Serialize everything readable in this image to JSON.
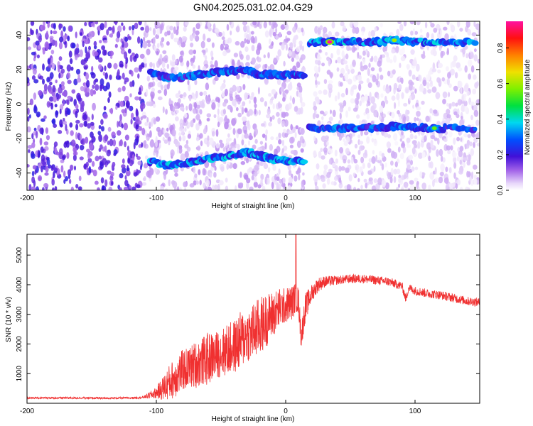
{
  "figure": {
    "title": "GN04.2025.031.02.04.G29"
  },
  "chart_data": [
    {
      "type": "heatmap",
      "title": "GN04.2025.031.02.04.G29",
      "xlabel": "Height of straight line (km)",
      "ylabel": "Frequency (Hz)",
      "xlim": [
        -200,
        150
      ],
      "ylim": [
        -50,
        48
      ],
      "xticks": [
        -200,
        -100,
        0,
        100
      ],
      "yticks": [
        40,
        20,
        0,
        -20,
        -40
      ],
      "grid": false,
      "colorbar": {
        "label": "Normalized spectral amplitude",
        "range": [
          0.0,
          0.95
        ],
        "ticks": [
          0.0,
          0.2,
          0.4,
          0.6,
          0.8
        ],
        "colors": [
          "#ffffff",
          "#c8a0f0",
          "#8030e0",
          "#2020e8",
          "#00a0ff",
          "#00e8d8",
          "#00e040",
          "#c8f000",
          "#ff9000",
          "#ff2030",
          "#ff1090"
        ]
      },
      "tracks": [
        {
          "x": [
            -105,
            -90,
            -75,
            -60,
            -45,
            -30,
            -20,
            -10,
            0,
            15
          ],
          "y": [
            18,
            15,
            16,
            18,
            19,
            20,
            17,
            17,
            17,
            17
          ],
          "amplitude": 0.3
        },
        {
          "x": [
            -105,
            -90,
            -75,
            -60,
            -45,
            -30,
            -20,
            -10,
            0,
            15
          ],
          "y": [
            -33,
            -36,
            -34,
            -32,
            -30,
            -28,
            -30,
            -32,
            -33,
            -33
          ],
          "amplitude": 0.35
        },
        {
          "x": [
            18,
            35,
            50,
            70,
            85,
            100,
            120,
            148
          ],
          "y": [
            36,
            36,
            36,
            36,
            37,
            36,
            36,
            36
          ],
          "amplitude": 0.35
        },
        {
          "x": [
            18,
            35,
            50,
            70,
            85,
            100,
            120,
            148
          ],
          "y": [
            -14,
            -14,
            -14,
            -14,
            -13,
            -14,
            -14,
            -14
          ],
          "amplitude": 0.3
        }
      ],
      "hotspots": [
        {
          "x": 34,
          "y": 36,
          "amplitude": 0.95
        },
        {
          "x": 84,
          "y": 37,
          "amplitude": 0.6
        },
        {
          "x": 115,
          "y": -14,
          "amplitude": 0.55
        }
      ]
    },
    {
      "type": "line",
      "xlabel": "Height of straight line (km)",
      "ylabel": "SNR (10 * v/v)",
      "xlim": [
        -200,
        150
      ],
      "ylim": [
        0,
        5700
      ],
      "xticks": [
        -200,
        -100,
        0,
        100
      ],
      "yticks": [
        1000,
        2000,
        3000,
        4000,
        5000
      ],
      "grid": false,
      "series": [
        {
          "color": "#f03030",
          "x": [
            -200,
            -180,
            -160,
            -140,
            -120,
            -110,
            -100,
            -95,
            -90,
            -85,
            -80,
            -75,
            -70,
            -65,
            -60,
            -55,
            -50,
            -45,
            -40,
            -35,
            -30,
            -25,
            -20,
            -15,
            -10,
            -5,
            0,
            5,
            8,
            10,
            12,
            15,
            20,
            25,
            30,
            40,
            50,
            60,
            70,
            80,
            90,
            93,
            95,
            100,
            110,
            120,
            130,
            140,
            150
          ],
          "y": [
            180,
            180,
            180,
            170,
            180,
            200,
            350,
            500,
            700,
            900,
            1100,
            1200,
            1300,
            1400,
            1500,
            1600,
            1700,
            1800,
            1900,
            2100,
            2300,
            2400,
            2600,
            2800,
            3000,
            3200,
            3300,
            3400,
            3600,
            3400,
            2200,
            3200,
            3700,
            4000,
            4100,
            4150,
            4200,
            4200,
            4150,
            4100,
            3950,
            3500,
            3900,
            3800,
            3700,
            3650,
            3550,
            3450,
            3400
          ],
          "spread": [
            30,
            30,
            30,
            30,
            30,
            40,
            200,
            400,
            600,
            700,
            700,
            700,
            800,
            800,
            900,
            800,
            800,
            900,
            900,
            1000,
            900,
            1000,
            1000,
            900,
            800,
            700,
            600,
            600,
            500,
            500,
            400,
            500,
            300,
            250,
            200,
            150,
            150,
            150,
            150,
            150,
            150,
            150,
            150,
            150,
            150,
            150,
            150,
            150,
            150
          ]
        }
      ],
      "spike": {
        "x": 8,
        "y": 5700
      }
    }
  ]
}
